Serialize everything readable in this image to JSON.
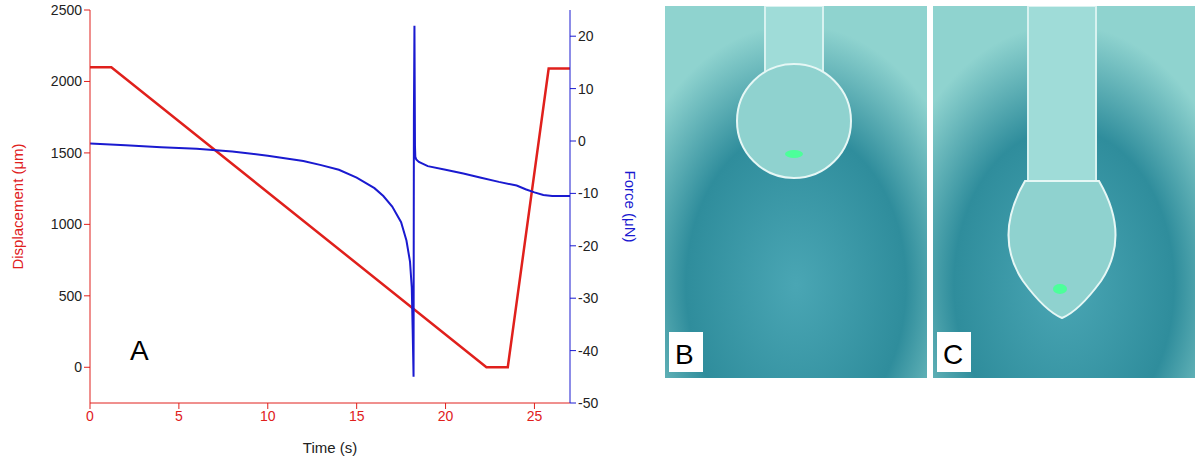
{
  "chart_data": {
    "type": "line",
    "x_label": "Time (s)",
    "y_label": "Displacement (μm)",
    "y2_label": "Force (μN)",
    "annotations": [
      "A"
    ],
    "xlim": [
      0,
      27
    ],
    "xticks": [
      0,
      5,
      10,
      15,
      20,
      25
    ],
    "ylim": [
      -250,
      2500
    ],
    "yticks": [
      0,
      500,
      1000,
      1500,
      2000,
      2500
    ],
    "y2lim": [
      -50,
      25
    ],
    "y2ticks": [
      -50,
      -40,
      -30,
      -20,
      -10,
      0,
      10,
      20
    ],
    "grid": false,
    "series": [
      {
        "color": "#e0201c",
        "x": [
          0,
          1.2,
          22.3,
          23.5,
          25.8,
          27
        ],
        "values": [
          2100,
          2100,
          0,
          0,
          2090,
          2090
        ]
      },
      {
        "color": "#1a1ad0",
        "axis": "y2",
        "x": [
          0,
          2,
          4,
          6,
          8,
          10,
          12,
          13,
          14,
          15,
          16,
          16.5,
          17,
          17.5,
          17.8,
          18.0,
          18.1,
          18.15,
          18.2,
          18.22,
          18.25,
          18.28,
          18.3,
          18.35,
          18.5,
          19,
          20,
          21,
          22,
          23,
          24,
          24.5,
          25,
          25.5,
          26,
          27
        ],
        "values": [
          -0.5,
          -0.8,
          -1.2,
          -1.5,
          -2,
          -2.8,
          -3.8,
          -4.6,
          -5.5,
          -7,
          -9,
          -10.5,
          -12.5,
          -15.5,
          -19,
          -23,
          -28,
          -36,
          -45,
          5,
          22,
          -1,
          -3,
          -3.5,
          -4,
          -4.8,
          -5.5,
          -6.2,
          -7,
          -7.8,
          -8.5,
          -9.2,
          -9.8,
          -10.3,
          -10.5,
          -10.5
        ]
      }
    ]
  },
  "images": [
    {
      "label": "B"
    },
    {
      "label": "C"
    }
  ]
}
